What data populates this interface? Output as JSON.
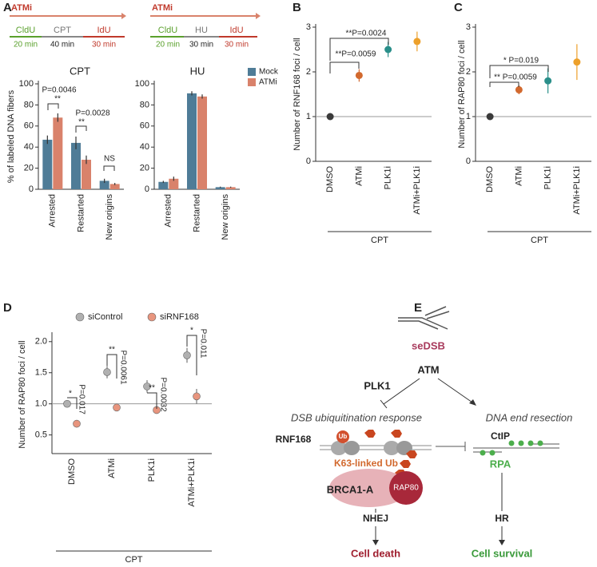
{
  "panel_labels": [
    "A",
    "B",
    "C",
    "D",
    "E"
  ],
  "schematics": [
    {
      "inhibitor": "ATMi",
      "steps": [
        {
          "label": "CldU",
          "time": "20 min"
        },
        {
          "label": "CPT",
          "time": "40 min"
        },
        {
          "label": "IdU",
          "time": "30 min"
        }
      ]
    },
    {
      "inhibitor": "ATMi",
      "steps": [
        {
          "label": "CldU",
          "time": "20 min"
        },
        {
          "label": "HU",
          "time": "30 min"
        },
        {
          "label": "IdU",
          "time": "30 min"
        }
      ]
    }
  ],
  "chart_data": [
    {
      "type": "bar",
      "title": "CPT",
      "y_label": "% of labeled DNA fibers",
      "categories": [
        "Arrested",
        "Restarted",
        "New origins"
      ],
      "series": [
        {
          "name": "Mock",
          "color": "#4f7c97",
          "values": [
            47,
            44,
            8
          ],
          "errors": [
            4,
            6,
            2
          ]
        },
        {
          "name": "ATMi",
          "color": "#d9826b",
          "values": [
            68,
            28,
            5
          ],
          "errors": [
            4,
            4,
            1
          ]
        }
      ],
      "ylim": [
        0,
        100
      ],
      "yticks": [
        0,
        20,
        40,
        60,
        80,
        100
      ],
      "legend": "right",
      "annotations": [
        "P=0.0046",
        "**",
        "P=0.0028",
        "**",
        "NS"
      ]
    },
    {
      "type": "bar",
      "title": "HU",
      "categories": [
        "Arrested",
        "Restarted",
        "New origins"
      ],
      "series": [
        {
          "color": "#4f7c97",
          "values": [
            7,
            91,
            2
          ],
          "errors": [
            1,
            2,
            0.5
          ]
        },
        {
          "color": "#d9826b",
          "values": [
            10,
            88,
            2
          ],
          "errors": [
            2,
            2,
            0.5
          ]
        }
      ],
      "ylim": [
        0,
        100
      ],
      "yticks": [
        0,
        20,
        40,
        60,
        80,
        100
      ]
    },
    {
      "type": "dot",
      "y_label": "Number of RNF168 foci / cell",
      "categories": [
        "DMSO",
        "ATMi",
        "PLK1i",
        "ATMi+PLK1i"
      ],
      "values": [
        1,
        1.92,
        2.5,
        2.68
      ],
      "errors": [
        null,
        0.14,
        0.17,
        0.22
      ],
      "colors": [
        "#3a3a3a",
        "#d2692e",
        "#2a8f8a",
        "#eda02a"
      ],
      "ylim": [
        0,
        3
      ],
      "yticks": [
        0,
        1,
        2,
        3
      ],
      "hline": 1,
      "group_label": "CPT",
      "annotations": [
        "**P=0.0059",
        "**P=0.0024"
      ]
    },
    {
      "type": "dot",
      "y_label": "Number of RAP80 foci / cell",
      "categories": [
        "DMSO",
        "ATMi",
        "PLK1i",
        "ATMi+PLK1i"
      ],
      "values": [
        1,
        1.6,
        1.8,
        2.22
      ],
      "errors": [
        null,
        0.1,
        0.28,
        0.4
      ],
      "colors": [
        "#3a3a3a",
        "#d2692e",
        "#2a8f8a",
        "#eda02a"
      ],
      "ylim": [
        0,
        3
      ],
      "yticks": [
        0,
        1,
        2,
        3
      ],
      "hline": 1,
      "group_label": "CPT",
      "annotations": [
        "* P=0.019",
        "** P=0.0059"
      ]
    },
    {
      "type": "dot",
      "y_label": "Number of RAP80 foci / cell",
      "categories": [
        "DMSO",
        "ATMi",
        "PLK1i",
        "ATMi+PLK1i"
      ],
      "series": [
        {
          "name": "siControl",
          "color": "#b0b0b0",
          "values": [
            1.0,
            1.51,
            1.28,
            1.78
          ],
          "errors": [
            0.02,
            0.1,
            0.1,
            0.12
          ]
        },
        {
          "name": "siRNF168",
          "color": "#e8957e",
          "values": [
            0.68,
            0.94,
            0.9,
            1.12
          ],
          "errors": [
            0.06,
            0.06,
            0.06,
            0.12
          ]
        }
      ],
      "ylim": [
        0.2,
        2.1
      ],
      "yticks": [
        {
          "value": 0.5,
          "label": "0.5"
        },
        {
          "value": 1,
          "label": "1.0"
        },
        {
          "value": 1.5,
          "label": "1.5"
        },
        {
          "value": 2,
          "label": "2.0"
        }
      ],
      "hline": 1,
      "group_label": "CPT",
      "legend": "top",
      "annotations": [
        "*",
        "P=0.017",
        "**",
        "P=0.0061",
        "**",
        "P=0.0032",
        "*",
        "P=0.011"
      ]
    }
  ],
  "diagram": {
    "break_label": "seDSB",
    "kinase": "ATM",
    "regulator": "PLK1",
    "left_pathway": "DSB ubiquitination response",
    "right_pathway": "DNA end resection",
    "ligase": "RNF168",
    "ub": "Ub",
    "chain": "K63-linked Ub",
    "complex": "BRCA1-A",
    "reader": "RAP80",
    "nuclease": "CtIP",
    "rpa": "RPA",
    "left_repair": "NHEJ",
    "right_repair": "HR",
    "left_outcome": "Cell death",
    "right_outcome": "Cell survival"
  }
}
